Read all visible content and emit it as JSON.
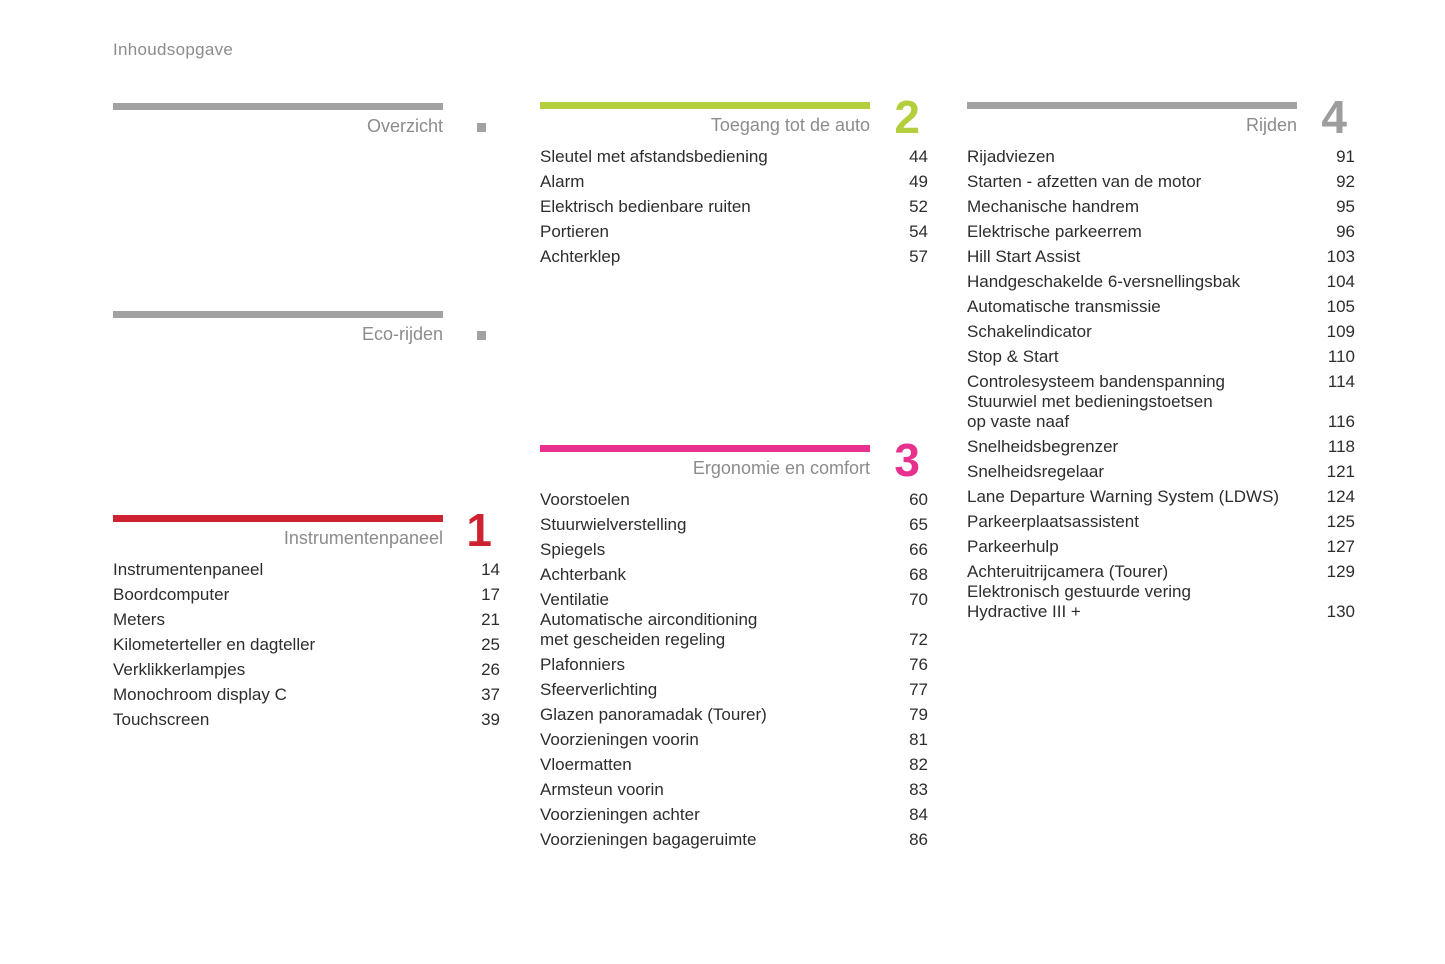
{
  "page": {
    "title": "Inhoudsopgave"
  },
  "palette": {
    "gray_bar": "#a2a2a2",
    "heading_text": "#8c8c8c",
    "item_text": "#2d2d2d",
    "chapter1_red": "#cf2231",
    "chapter2_lime": "#b4cf3e",
    "chapter3_pink": "#e8318e",
    "chapter4_gray": "#9d9d9d"
  },
  "sections": [
    {
      "label": "Overzicht",
      "number": "",
      "color": "#a2a2a2",
      "number_color": "#a2a2a2",
      "marker_icon": "small-gray-square",
      "items": []
    },
    {
      "label": "Eco-rijden",
      "number": "",
      "color": "#a2a2a2",
      "number_color": "#a2a2a2",
      "marker_icon": "small-gray-square",
      "items": []
    },
    {
      "label": "Instrumentenpaneel",
      "number": "1",
      "color": "#cf2231",
      "number_color": "#cf2231",
      "items": [
        {
          "title": "Instrumentenpaneel",
          "page": "14"
        },
        {
          "title": "Boordcomputer",
          "page": "17"
        },
        {
          "title": "Meters",
          "page": "21"
        },
        {
          "title": "Kilometerteller en dagteller",
          "page": "25"
        },
        {
          "title": "Verklikkerlampjes",
          "page": "26"
        },
        {
          "title": "Monochroom display C",
          "page": "37"
        },
        {
          "title": "Touchscreen",
          "page": "39"
        }
      ]
    },
    {
      "label": "Toegang tot de auto",
      "number": "2",
      "color": "#b4cf3e",
      "number_color": "#b4cf3e",
      "items": [
        {
          "title": "Sleutel met afstandsbediening",
          "page": "44"
        },
        {
          "title": "Alarm",
          "page": "49"
        },
        {
          "title": "Elektrisch bedienbare ruiten",
          "page": "52"
        },
        {
          "title": "Portieren",
          "page": "54"
        },
        {
          "title": "Achterklep",
          "page": "57"
        }
      ]
    },
    {
      "label": "Ergonomie en comfort",
      "number": "3",
      "color": "#e8318e",
      "number_color": "#e8318e",
      "items": [
        {
          "title": "Voorstoelen",
          "page": "60"
        },
        {
          "title": "Stuurwielverstelling",
          "page": "65"
        },
        {
          "title": "Spiegels",
          "page": "66"
        },
        {
          "title": "Achterbank",
          "page": "68"
        },
        {
          "title": "Ventilatie",
          "page": "70"
        },
        {
          "title": "Automatische airconditioning\nmet gescheiden regeling",
          "page": "72"
        },
        {
          "title": "Plafonniers",
          "page": "76"
        },
        {
          "title": "Sfeerverlichting",
          "page": "77"
        },
        {
          "title": "Glazen panoramadak (Tourer)",
          "page": "79"
        },
        {
          "title": "Voorzieningen voorin",
          "page": "81"
        },
        {
          "title": "Vloermatten",
          "page": "82"
        },
        {
          "title": "Armsteun voorin",
          "page": "83"
        },
        {
          "title": "Voorzieningen achter",
          "page": "84"
        },
        {
          "title": "Voorzieningen bagageruimte",
          "page": "86"
        }
      ]
    },
    {
      "label": "Rijden",
      "number": "4",
      "color": "#a2a2a2",
      "number_color": "#9d9d9d",
      "items": [
        {
          "title": "Rijadviezen",
          "page": "91"
        },
        {
          "title": "Starten - afzetten van de motor",
          "page": "92"
        },
        {
          "title": "Mechanische handrem",
          "page": "95"
        },
        {
          "title": "Elektrische parkeerrem",
          "page": "96"
        },
        {
          "title": "Hill Start Assist",
          "page": "103"
        },
        {
          "title": "Handgeschakelde 6-versnellingsbak",
          "page": "104"
        },
        {
          "title": "Automatische transmissie",
          "page": "105"
        },
        {
          "title": "Schakelindicator",
          "page": "109"
        },
        {
          "title": "Stop & Start",
          "page": "110"
        },
        {
          "title": "Controlesysteem bandenspanning",
          "page": "114"
        },
        {
          "title": "Stuurwiel met bedieningstoetsen\nop vaste naaf",
          "page": "116"
        },
        {
          "title": "Snelheidsbegrenzer",
          "page": "118"
        },
        {
          "title": "Snelheidsregelaar",
          "page": "121"
        },
        {
          "title": "Lane Departure Warning System (LDWS)",
          "page": "124"
        },
        {
          "title": "Parkeerplaatsassistent",
          "page": "125"
        },
        {
          "title": "Parkeerhulp",
          "page": "127"
        },
        {
          "title": "Achteruitrijcamera (Tourer)",
          "page": "129"
        },
        {
          "title": "Elektronisch gestuurde vering\nHydractive III +",
          "page": "130"
        }
      ]
    }
  ]
}
